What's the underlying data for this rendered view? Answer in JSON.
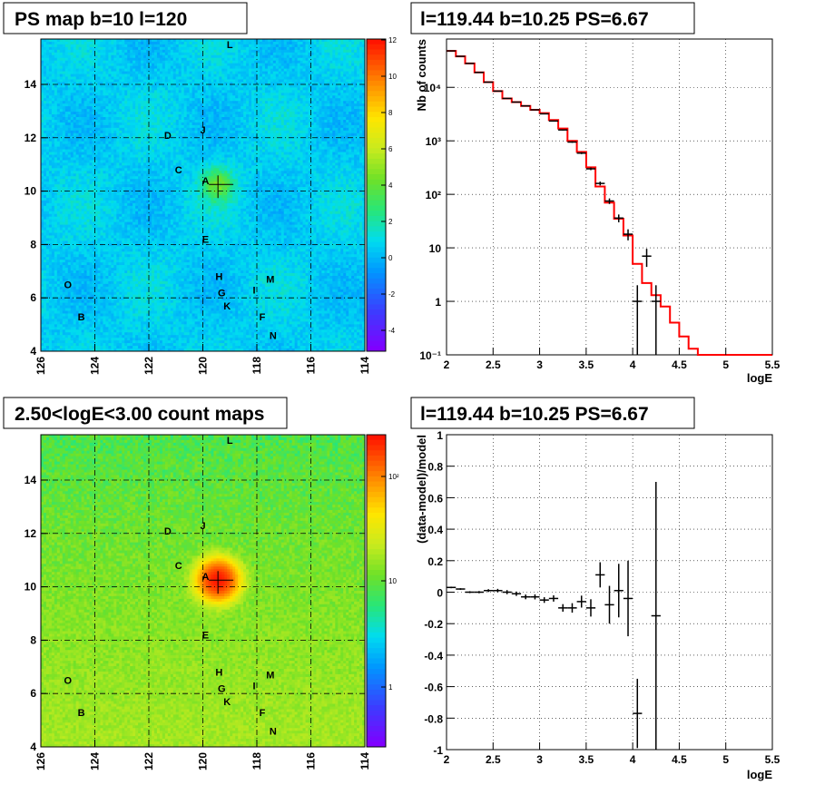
{
  "panels": {
    "ps_map": {
      "title": "PS map b=10 l=120",
      "x_ticks": [
        "126",
        "124",
        "122",
        "120",
        "118",
        "116",
        "114"
      ],
      "y_ticks": [
        "4",
        "6",
        "8",
        "10",
        "12",
        "14"
      ],
      "colorbar_ticks": [
        "12",
        "10",
        "8",
        "6",
        "4",
        "2",
        "0",
        "-2",
        "-4"
      ]
    },
    "count_map": {
      "title": "2.50<logE<3.00 count maps",
      "x_ticks": [
        "126",
        "124",
        "122",
        "120",
        "118",
        "116",
        "114"
      ],
      "y_ticks": [
        "4",
        "6",
        "8",
        "10",
        "12",
        "14"
      ],
      "colorbar_ticks": [
        "10²",
        "10",
        "1"
      ]
    },
    "spectrum": {
      "title": "l=119.44 b=10.25 PS=6.67"
    },
    "residual": {
      "title": "l=119.44 b=10.25 PS=6.67"
    }
  },
  "sources": [
    {
      "label": "L",
      "l": 119.0,
      "b": 15.5
    },
    {
      "label": "D",
      "l": 121.3,
      "b": 12.1
    },
    {
      "label": "J",
      "l": 120.0,
      "b": 12.3
    },
    {
      "label": "C",
      "l": 120.9,
      "b": 10.8
    },
    {
      "label": "A",
      "l": 119.9,
      "b": 10.4
    },
    {
      "label": "E",
      "l": 119.9,
      "b": 8.2
    },
    {
      "label": "H",
      "l": 119.4,
      "b": 6.8
    },
    {
      "label": "M",
      "l": 117.5,
      "b": 6.7
    },
    {
      "label": "I",
      "l": 118.1,
      "b": 6.3
    },
    {
      "label": "G",
      "l": 119.3,
      "b": 6.2
    },
    {
      "label": "K",
      "l": 119.1,
      "b": 5.7
    },
    {
      "label": "F",
      "l": 117.8,
      "b": 5.3
    },
    {
      "label": "N",
      "l": 117.4,
      "b": 4.6
    },
    {
      "label": "O",
      "l": 125.0,
      "b": 6.5
    },
    {
      "label": "B",
      "l": 124.5,
      "b": 5.3
    }
  ],
  "map_colors": {
    "ps_background": "#33ccf0",
    "count_background": "#7fe040",
    "source_peak": "#e02020"
  },
  "chart_data": [
    {
      "type": "heatmap",
      "title": "PS map b=10 l=120",
      "xlim": [
        126,
        114
      ],
      "ylim": [
        4,
        15.7
      ],
      "z_range": [
        -5,
        12
      ],
      "peak": {
        "l": 119.44,
        "b": 10.25,
        "value": 6.67
      }
    },
    {
      "type": "line",
      "title": "l=119.44 b=10.25 PS=6.67",
      "xlabel": "logE",
      "ylabel": "Nb of counts",
      "xlim": [
        2,
        5.5
      ],
      "ylim": [
        0.1,
        80000
      ],
      "x_ticks": [
        "2",
        "2.5",
        "3",
        "3.5",
        "4",
        "4.5",
        "5",
        "5.5"
      ],
      "y_ticks": [
        "10⁻¹",
        "1",
        "10",
        "10²",
        "10³",
        "10⁴"
      ],
      "y_scale": "log",
      "grid": true,
      "bin_edges": [
        2.0,
        2.1,
        2.2,
        2.3,
        2.4,
        2.5,
        2.6,
        2.7,
        2.8,
        2.9,
        3.0,
        3.1,
        3.2,
        3.3,
        3.4,
        3.5,
        3.6,
        3.7,
        3.8,
        3.9,
        4.0,
        4.1,
        4.2,
        4.3,
        4.4,
        4.5,
        4.6,
        4.7,
        4.8,
        4.9,
        5.0,
        5.1,
        5.2,
        5.3,
        5.4,
        5.5
      ],
      "model": [
        48000,
        38000,
        28000,
        19000,
        12500,
        8500,
        6200,
        5300,
        4500,
        3800,
        3300,
        2450,
        1700,
        1000,
        620,
        320,
        140,
        70,
        35,
        17,
        5,
        2.2,
        1.3,
        0.8,
        0.4,
        0.22,
        0.13,
        0.1,
        0.1,
        0.1,
        0.1,
        0.1,
        0.1,
        0.1,
        0.1
      ],
      "data": [
        {
          "x": 2.05,
          "y": 48000,
          "err": 220
        },
        {
          "x": 2.15,
          "y": 38000,
          "err": 200
        },
        {
          "x": 2.25,
          "y": 28000,
          "err": 170
        },
        {
          "x": 2.35,
          "y": 19000,
          "err": 140
        },
        {
          "x": 2.45,
          "y": 12500,
          "err": 110
        },
        {
          "x": 2.55,
          "y": 8500,
          "err": 92
        },
        {
          "x": 2.65,
          "y": 6200,
          "err": 79
        },
        {
          "x": 2.75,
          "y": 5300,
          "err": 73
        },
        {
          "x": 2.85,
          "y": 4500,
          "err": 67
        },
        {
          "x": 2.95,
          "y": 3800,
          "err": 62
        },
        {
          "x": 3.05,
          "y": 3200,
          "err": 57
        },
        {
          "x": 3.15,
          "y": 2350,
          "err": 48
        },
        {
          "x": 3.25,
          "y": 1600,
          "err": 40
        },
        {
          "x": 3.35,
          "y": 950,
          "err": 31
        },
        {
          "x": 3.45,
          "y": 590,
          "err": 24
        },
        {
          "x": 3.55,
          "y": 300,
          "err": 17
        },
        {
          "x": 3.65,
          "y": 160,
          "err": 13
        },
        {
          "x": 3.75,
          "y": 75,
          "err": 9
        },
        {
          "x": 3.85,
          "y": 36,
          "err": 6
        },
        {
          "x": 3.95,
          "y": 18,
          "err": 4.2
        },
        {
          "x": 4.05,
          "y": 1,
          "err": 1
        },
        {
          "x": 4.15,
          "y": 7,
          "err": 2.6
        },
        {
          "x": 4.25,
          "y": 1,
          "err": 1
        }
      ]
    },
    {
      "type": "heatmap",
      "title": "2.50<logE<3.00 count maps",
      "xlim": [
        126,
        114
      ],
      "ylim": [
        4,
        15.7
      ],
      "z_scale": "log",
      "z_range": [
        0.3,
        300
      ]
    },
    {
      "type": "scatter",
      "title": "l=119.44 b=10.25 PS=6.67",
      "xlabel": "logE",
      "ylabel": "(data-model)/model",
      "xlim": [
        2,
        5.5
      ],
      "ylim": [
        -1,
        1
      ],
      "x_ticks": [
        "2",
        "2.5",
        "3",
        "3.5",
        "4",
        "4.5",
        "5",
        "5.5"
      ],
      "y_ticks": [
        "1",
        "0.8",
        "0.6",
        "0.4",
        "0.2",
        "0",
        "-0.2",
        "-0.4",
        "-0.6",
        "-0.8",
        "-1"
      ],
      "grid": true,
      "points": [
        {
          "x": 2.05,
          "y": 0.03,
          "err": 0.005
        },
        {
          "x": 2.15,
          "y": 0.02,
          "err": 0.005
        },
        {
          "x": 2.25,
          "y": 0.0,
          "err": 0.006
        },
        {
          "x": 2.35,
          "y": 0.0,
          "err": 0.007
        },
        {
          "x": 2.45,
          "y": 0.01,
          "err": 0.009
        },
        {
          "x": 2.55,
          "y": 0.01,
          "err": 0.011
        },
        {
          "x": 2.65,
          "y": 0.0,
          "err": 0.013
        },
        {
          "x": 2.75,
          "y": -0.01,
          "err": 0.014
        },
        {
          "x": 2.85,
          "y": -0.03,
          "err": 0.015
        },
        {
          "x": 2.95,
          "y": -0.03,
          "err": 0.016
        },
        {
          "x": 3.05,
          "y": -0.05,
          "err": 0.018
        },
        {
          "x": 3.15,
          "y": -0.04,
          "err": 0.02
        },
        {
          "x": 3.25,
          "y": -0.1,
          "err": 0.024
        },
        {
          "x": 3.35,
          "y": -0.1,
          "err": 0.03
        },
        {
          "x": 3.45,
          "y": -0.06,
          "err": 0.038
        },
        {
          "x": 3.55,
          "y": -0.1,
          "err": 0.055
        },
        {
          "x": 3.65,
          "y": 0.11,
          "err": 0.08
        },
        {
          "x": 3.75,
          "y": -0.08,
          "err": 0.12
        },
        {
          "x": 3.85,
          "y": 0.01,
          "err": 0.17
        },
        {
          "x": 3.95,
          "y": -0.04,
          "err": 0.24
        },
        {
          "x": 4.05,
          "y": -0.77,
          "err": 0.22
        },
        {
          "x": 4.25,
          "y": -0.15,
          "err": 0.85
        }
      ]
    }
  ]
}
